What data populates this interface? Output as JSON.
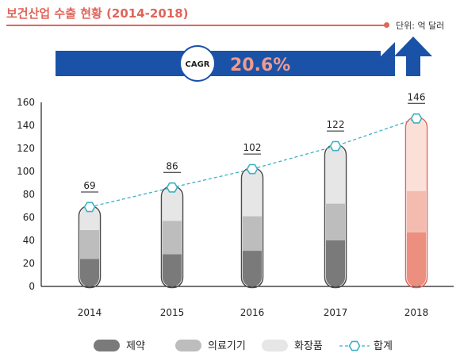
{
  "title": "보건산업 수출 현황 (2014-2018)",
  "unit_label": "단위: 억 달러",
  "cagr": {
    "label": "CAGR",
    "value": "20.6%"
  },
  "colors": {
    "accent": "#e0655a",
    "banner": "#1a52a8",
    "pharma": "#7a7a7a",
    "medical": "#bdbdbd",
    "cosmetics": "#e6e6e6",
    "total_line": "#3bb0c6",
    "pharma_2018": "#ec8f7e",
    "medical_2018": "#f4bcae",
    "cosmetics_2018": "#fbe0d8"
  },
  "chart_data": {
    "type": "bar",
    "stacked": true,
    "categories": [
      "2014",
      "2015",
      "2016",
      "2017",
      "2018"
    ],
    "series": [
      {
        "name": "제약",
        "values": [
          24,
          28,
          31,
          40,
          47
        ]
      },
      {
        "name": "의료기기",
        "values": [
          25,
          29,
          30,
          32,
          36
        ]
      },
      {
        "name": "화장품",
        "values": [
          20,
          29,
          41,
          50,
          63
        ]
      }
    ],
    "total": {
      "name": "합계",
      "values": [
        69,
        86,
        102,
        122,
        146
      ]
    },
    "y_ticks": [
      "0",
      "20",
      "40",
      "60",
      "80",
      "100",
      "120",
      "140",
      "160"
    ],
    "ylim": [
      0,
      160
    ],
    "legend_position": "bottom"
  }
}
